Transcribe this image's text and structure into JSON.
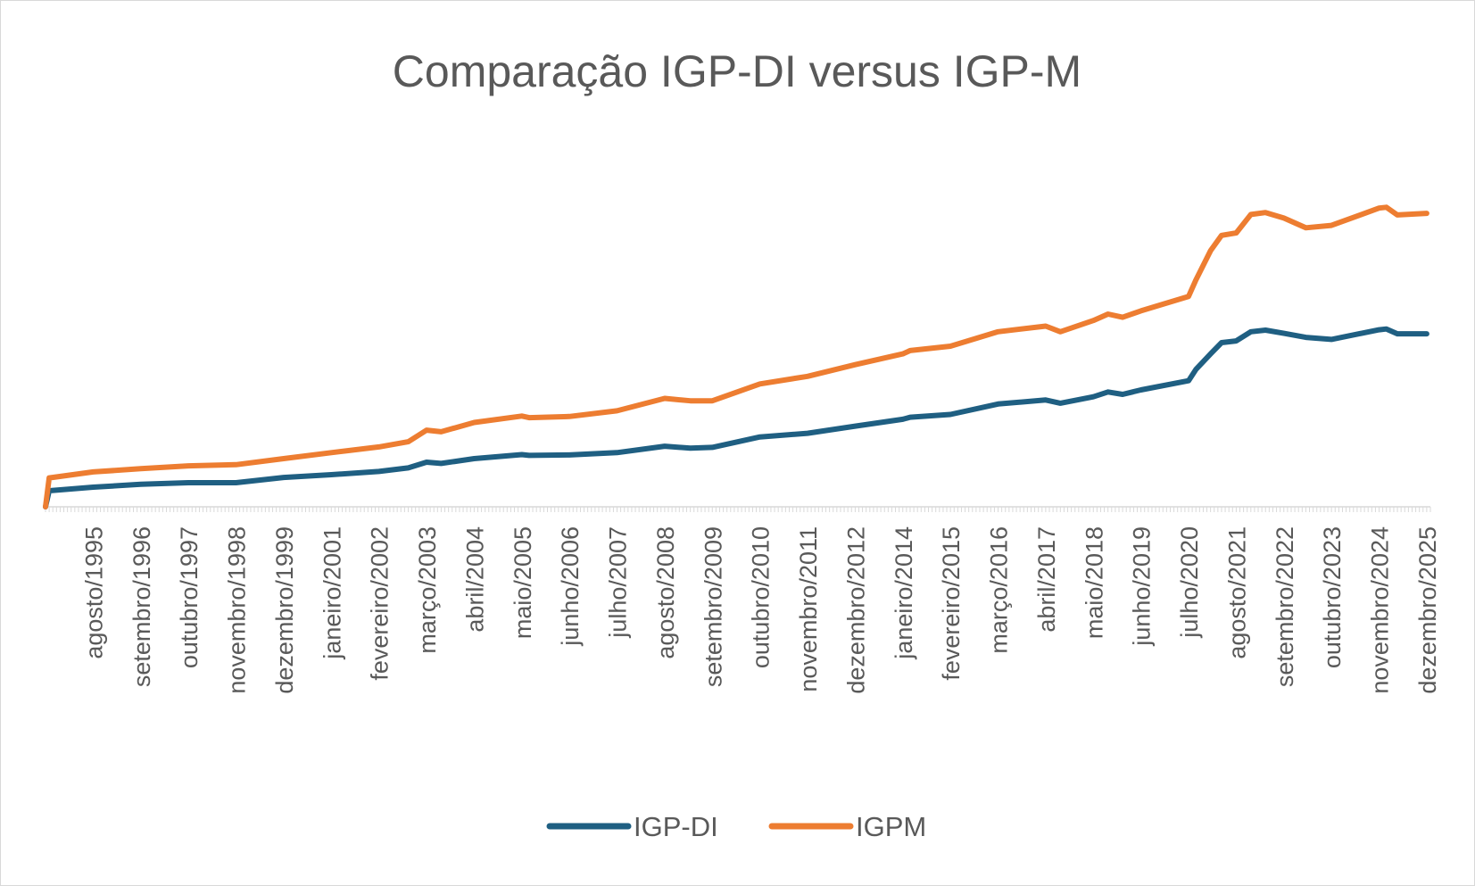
{
  "chart_data": {
    "type": "line",
    "title": "Comparação IGP-DI versus IGP-M",
    "xlabel": "",
    "ylabel": "",
    "ylim": [
      0,
      100
    ],
    "grid": false,
    "legend": "bottom",
    "x_tick_labels": [
      "agosto/1995",
      "setembro/1996",
      "outubro/1997",
      "novembro/1998",
      "dezembro/1999",
      "janeiro/2001",
      "fevereiro/2002",
      "março/2003",
      "abril/2004",
      "maio/2005",
      "junho/2006",
      "julho/2007",
      "agosto/2008",
      "setembro/2009",
      "outubro/2010",
      "novembro/2011",
      "dezembro/2012",
      "janeiro/2014",
      "fevereiro/2015",
      "março/2016",
      "abril/2017",
      "maio/2018",
      "junho/2019",
      "julho/2020",
      "agosto/2021",
      "setembro/2022",
      "outubro/2023",
      "novembro/2024",
      "dezembro/2025"
    ],
    "x_range": [
      "julho/1994",
      "janeiro/2026"
    ],
    "series": [
      {
        "name": "IGP-DI",
        "color": "#1f5f82",
        "points": [
          [
            "julho/1994",
            0.0
          ],
          [
            "agosto/1994",
            4.0
          ],
          [
            "agosto/1995",
            4.9
          ],
          [
            "setembro/1996",
            5.6
          ],
          [
            "outubro/1997",
            6.0
          ],
          [
            "novembro/1998",
            6.0
          ],
          [
            "dezembro/1999",
            7.3
          ],
          [
            "janeiro/2001",
            8.0
          ],
          [
            "fevereiro/2002",
            8.8
          ],
          [
            "outubro/2002",
            9.7
          ],
          [
            "março/2003",
            11.1
          ],
          [
            "julho/2003",
            10.8
          ],
          [
            "abril/2004",
            12.0
          ],
          [
            "maio/2005",
            13.0
          ],
          [
            "julho/2005",
            12.8
          ],
          [
            "junho/2006",
            12.9
          ],
          [
            "julho/2007",
            13.5
          ],
          [
            "agosto/2008",
            15.1
          ],
          [
            "março/2009",
            14.6
          ],
          [
            "setembro/2009",
            14.8
          ],
          [
            "outubro/2010",
            17.4
          ],
          [
            "novembro/2011",
            18.3
          ],
          [
            "dezembro/2012",
            20.1
          ],
          [
            "janeiro/2014",
            21.8
          ],
          [
            "março/2014",
            22.3
          ],
          [
            "fevereiro/2015",
            23.0
          ],
          [
            "março/2016",
            25.6
          ],
          [
            "abril/2017",
            26.6
          ],
          [
            "agosto/2017",
            25.8
          ],
          [
            "maio/2018",
            27.4
          ],
          [
            "setembro/2018",
            28.6
          ],
          [
            "janeiro/2019",
            28.0
          ],
          [
            "junho/2019",
            29.1
          ],
          [
            "julho/2020",
            31.4
          ],
          [
            "setembro/2020",
            34.2
          ],
          [
            "janeiro/2021",
            38.1
          ],
          [
            "abril/2021",
            40.9
          ],
          [
            "agosto/2021",
            41.3
          ],
          [
            "dezembro/2021",
            43.6
          ],
          [
            "abril/2022",
            44.0
          ],
          [
            "setembro/2022",
            43.2
          ],
          [
            "março/2023",
            42.2
          ],
          [
            "outubro/2023",
            41.7
          ],
          [
            "novembro/2024",
            44.1
          ],
          [
            "janeiro/2025",
            44.3
          ],
          [
            "abril/2025",
            43.1
          ],
          [
            "dezembro/2025",
            43.1
          ]
        ]
      },
      {
        "name": "IGPM",
        "color": "#ed7d31",
        "points": [
          [
            "julho/1994",
            0.0
          ],
          [
            "agosto/1994",
            7.2
          ],
          [
            "agosto/1995",
            8.7
          ],
          [
            "setembro/1996",
            9.5
          ],
          [
            "outubro/1997",
            10.2
          ],
          [
            "novembro/1998",
            10.5
          ],
          [
            "dezembro/1999",
            12.0
          ],
          [
            "janeiro/2001",
            13.5
          ],
          [
            "fevereiro/2002",
            14.9
          ],
          [
            "outubro/2002",
            16.2
          ],
          [
            "março/2003",
            19.1
          ],
          [
            "julho/2003",
            18.7
          ],
          [
            "abril/2004",
            21.0
          ],
          [
            "maio/2005",
            22.6
          ],
          [
            "julho/2005",
            22.2
          ],
          [
            "junho/2006",
            22.5
          ],
          [
            "julho/2007",
            23.9
          ],
          [
            "agosto/2008",
            27.0
          ],
          [
            "março/2009",
            26.4
          ],
          [
            "setembro/2009",
            26.4
          ],
          [
            "outubro/2010",
            30.6
          ],
          [
            "novembro/2011",
            32.5
          ],
          [
            "dezembro/2012",
            35.4
          ],
          [
            "janeiro/2014",
            38.1
          ],
          [
            "março/2014",
            38.9
          ],
          [
            "fevereiro/2015",
            40.0
          ],
          [
            "março/2016",
            43.6
          ],
          [
            "abril/2017",
            45.0
          ],
          [
            "agosto/2017",
            43.6
          ],
          [
            "maio/2018",
            46.4
          ],
          [
            "setembro/2018",
            48.0
          ],
          [
            "janeiro/2019",
            47.2
          ],
          [
            "junho/2019",
            48.8
          ],
          [
            "julho/2020",
            52.4
          ],
          [
            "setembro/2020",
            56.5
          ],
          [
            "janeiro/2021",
            63.8
          ],
          [
            "abril/2021",
            67.6
          ],
          [
            "agosto/2021",
            68.2
          ],
          [
            "dezembro/2021",
            72.8
          ],
          [
            "abril/2022",
            73.3
          ],
          [
            "setembro/2022",
            71.9
          ],
          [
            "março/2023",
            69.5
          ],
          [
            "outubro/2023",
            70.1
          ],
          [
            "novembro/2024",
            74.4
          ],
          [
            "janeiro/2025",
            74.6
          ],
          [
            "abril/2025",
            72.7
          ],
          [
            "dezembro/2025",
            73.1
          ]
        ]
      }
    ]
  }
}
